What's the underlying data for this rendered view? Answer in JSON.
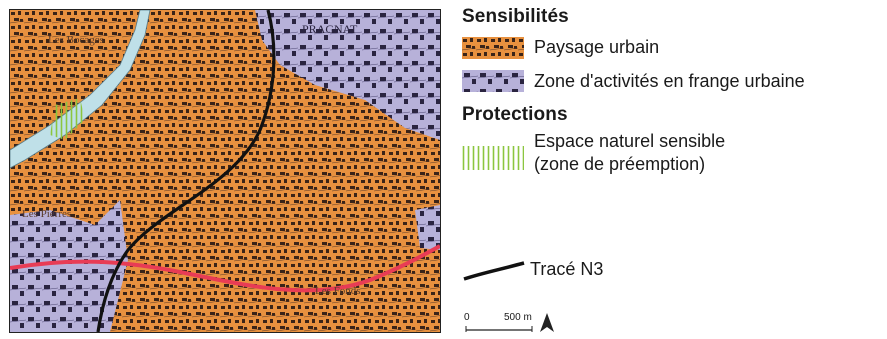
{
  "legend": {
    "sensibilites_heading": "Sensibilités",
    "items_sensibilites": [
      {
        "label": "Paysage urbain",
        "color": "#e8913f",
        "icon": "urban-landscape-swatch"
      },
      {
        "label": "Zone d'activités en frange urbaine",
        "color": "#b7b1d9",
        "icon": "activity-zone-swatch"
      }
    ],
    "protections_heading": "Protections",
    "espace_line1": "Espace naturel sensible",
    "espace_line2": "(zone de préemption)",
    "espace_color": "#8cc63f",
    "trace_label": "Tracé N3",
    "scale_zero": "0",
    "scale_value": "500 m"
  },
  "map": {
    "place_labels": {
      "bocages": "Les Bocages",
      "pragnat": "PRAGNAT",
      "pierres": "Les Pierres",
      "grands_fonds": "Les Fonds"
    },
    "colors": {
      "urban": "#e8913f",
      "activity": "#b7b1d9",
      "river": "#bfe0e8",
      "road": "#e83c55",
      "trace": "#111111"
    }
  }
}
